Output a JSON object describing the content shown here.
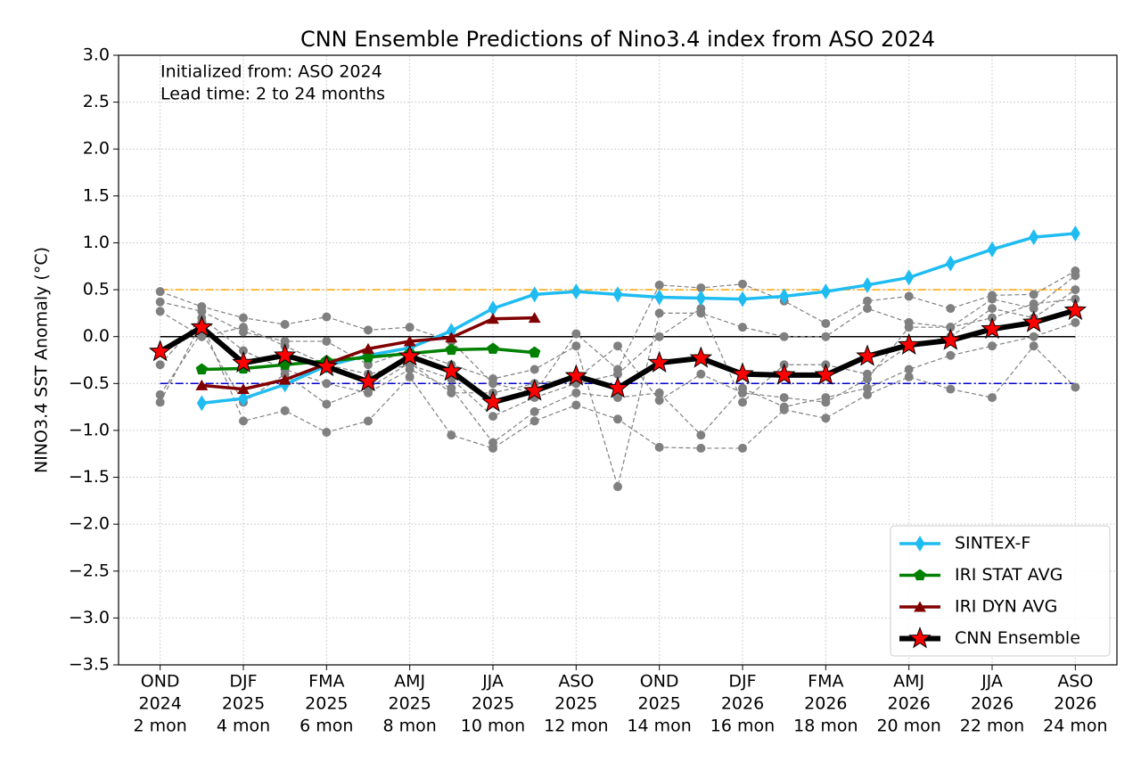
{
  "chart_data": {
    "type": "line",
    "title": "CNN Ensemble Predictions of Nino3.4 index from ASO 2024",
    "ylabel": "NINO3.4 SST Anomaly (°C)",
    "annotations": [
      "Initialized from: ASO 2024",
      "Lead time: 2 to 24 months"
    ],
    "categories": [
      [
        "OND",
        "2024",
        "2 mon"
      ],
      null,
      [
        "DJF",
        "2025",
        "4 mon"
      ],
      null,
      [
        "FMA",
        "2025",
        "6 mon"
      ],
      null,
      [
        "AMJ",
        "2025",
        "8 mon"
      ],
      null,
      [
        "JJA",
        "2025",
        "10 mon"
      ],
      null,
      [
        "ASO",
        "2025",
        "12 mon"
      ],
      null,
      [
        "OND",
        "2025",
        "14 mon"
      ],
      null,
      [
        "DJF",
        "2026",
        "16 mon"
      ],
      null,
      [
        "FMA",
        "2026",
        "18 mon"
      ],
      null,
      [
        "AMJ",
        "2026",
        "20 mon"
      ],
      null,
      [
        "JJA",
        "2026",
        "22 mon"
      ],
      null,
      [
        "ASO",
        "2026",
        "24 mon"
      ]
    ],
    "ylim": [
      -3.5,
      3.0
    ],
    "yticks": [
      {
        "value": -3.5,
        "label": "−3.5"
      },
      {
        "value": -3.0,
        "label": "−3.0"
      },
      {
        "value": -2.5,
        "label": "−2.5"
      },
      {
        "value": -2.0,
        "label": "−2.0"
      },
      {
        "value": -1.5,
        "label": "−1.5"
      },
      {
        "value": -1.0,
        "label": "−1.0"
      },
      {
        "value": -0.5,
        "label": "−0.5"
      },
      {
        "value": 0,
        "label": "0.0"
      },
      {
        "value": 0.5,
        "label": "0.5"
      },
      {
        "value": 1.0,
        "label": "1.0"
      },
      {
        "value": 1.5,
        "label": "1.5"
      },
      {
        "value": 2.0,
        "label": "2.0"
      },
      {
        "value": 2.5,
        "label": "2.5"
      },
      {
        "value": 3.0,
        "label": "3.0"
      }
    ],
    "grid": true,
    "legend": "lower right",
    "reference_lines": [
      {
        "value": 0.5,
        "color": "#ffa500",
        "style": "dashdot"
      },
      {
        "value": -0.5,
        "color": "#0000cd",
        "style": "dashdot"
      },
      {
        "value": 0,
        "color": "#000000",
        "style": "solid"
      }
    ],
    "members_color": "#808080",
    "members": [
      [
        0.48,
        0.32,
        0.2,
        0.13,
        0.21,
        0.07,
        0.1,
        -0.05,
        -0.5,
        -0.6,
        0.03,
        -0.35,
        0.55,
        0.52,
        0.56,
        0.38,
        0.14,
        0.38,
        0.43,
        0.3,
        0.44,
        0.45,
        0.7
      ],
      [
        -0.7,
        0.15,
        -0.9,
        -0.79,
        -1.02,
        -0.9,
        -0.43,
        -1.05,
        -1.19,
        -0.9,
        -0.73,
        -0.88,
        -1.18,
        -1.19,
        -1.19,
        -0.78,
        -0.87,
        -0.62,
        -0.43,
        -0.56,
        -0.65,
        -0.1,
        -0.54
      ],
      [
        0.37,
        0.27,
        0.05,
        -0.05,
        -0.05,
        -0.3,
        -0.15,
        -0.3,
        -0.45,
        -0.35,
        -0.1,
        -1.6,
        0.25,
        0.25,
        0.1,
        0.0,
        0.0,
        0.3,
        0.15,
        0.1,
        0.4,
        0.3,
        0.65
      ],
      [
        -0.3,
        0.2,
        -0.15,
        -0.35,
        -0.5,
        -0.6,
        -0.35,
        -0.55,
        -1.13,
        -0.8,
        -0.6,
        -0.65,
        -0.6,
        -1.05,
        -0.55,
        -0.75,
        -0.65,
        -0.55,
        -0.35,
        -0.2,
        -0.1,
        0.0,
        0.15
      ],
      [
        0.27,
        0.0,
        0.1,
        -0.1,
        -0.3,
        -0.4,
        -0.3,
        -0.45,
        -0.85,
        -0.65,
        -0.5,
        -0.4,
        0.0,
        0.3,
        -0.7,
        -0.3,
        -0.3,
        -0.4,
        -0.1,
        0.0,
        0.3,
        0.2,
        0.5
      ],
      [
        -0.62,
        0.05,
        -0.7,
        -0.4,
        -0.72,
        -0.55,
        -0.28,
        -0.6,
        -0.6,
        -0.5,
        -0.45,
        -0.1,
        -0.68,
        -0.4,
        -0.6,
        -0.65,
        -0.7,
        -0.45,
        0.1,
        0.1,
        0.2,
        0.35,
        0.4
      ]
    ],
    "series": [
      {
        "name": "SINTEX-F",
        "color": "#1fbcf2",
        "marker": "diamond",
        "values": [
          null,
          -0.71,
          -0.66,
          -0.51,
          -0.31,
          -0.2,
          -0.12,
          0.06,
          0.3,
          0.45,
          0.48,
          0.45,
          0.42,
          0.41,
          0.4,
          0.43,
          0.48,
          0.55,
          0.63,
          0.78,
          0.93,
          1.06,
          1.1
        ]
      },
      {
        "name": "IRI STAT AVG",
        "color": "#008000",
        "marker": "pentagon",
        "values": [
          null,
          -0.35,
          -0.34,
          -0.3,
          -0.26,
          -0.22,
          -0.18,
          -0.14,
          -0.13,
          -0.17,
          null,
          null,
          null,
          null,
          null,
          null,
          null,
          null,
          null,
          null,
          null,
          null,
          null
        ]
      },
      {
        "name": "IRI DYN AVG",
        "color": "#800000",
        "marker": "triangle",
        "values": [
          null,
          -0.52,
          -0.56,
          -0.46,
          -0.29,
          -0.13,
          -0.05,
          -0.01,
          0.19,
          0.2,
          null,
          null,
          null,
          null,
          null,
          null,
          null,
          null,
          null,
          null,
          null,
          null,
          null
        ]
      },
      {
        "name": "CNN Ensemble",
        "color": "#000000",
        "marker": "star",
        "marker_color": "#ff0000",
        "values": [
          -0.16,
          0.1,
          -0.28,
          -0.2,
          -0.32,
          -0.48,
          -0.21,
          -0.37,
          -0.7,
          -0.58,
          -0.42,
          -0.55,
          -0.28,
          -0.23,
          -0.4,
          -0.41,
          -0.41,
          -0.21,
          -0.09,
          -0.04,
          0.08,
          0.15,
          0.28
        ]
      }
    ]
  }
}
